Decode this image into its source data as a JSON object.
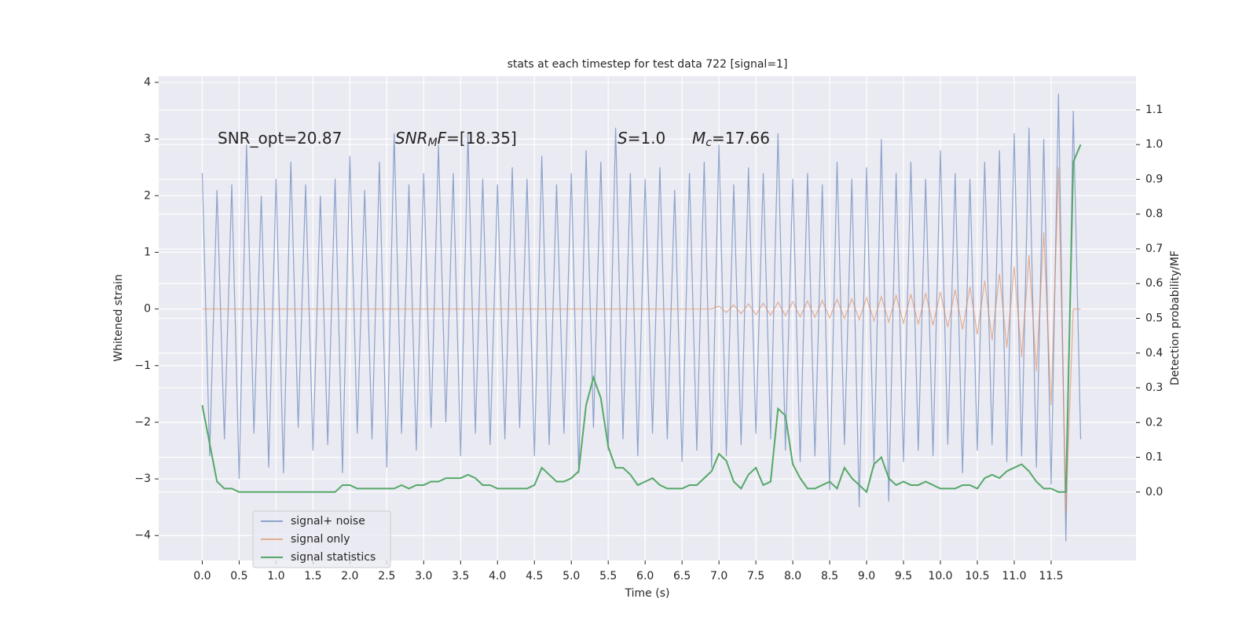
{
  "chart_data": {
    "type": "line",
    "title": "stats at each timestep for test data 722 [signal=1]",
    "xlabel": "Time (s)",
    "ylabel": "Whitened strain",
    "y2label": "Detection probability/MF",
    "annotations": [
      [
        {
          "text": "SNR_opt=20.87"
        }
      ],
      [
        {
          "text": "SNR",
          "style": "italic"
        },
        {
          "text": "M",
          "style": "sub"
        },
        {
          "text": "F",
          "style": "italic"
        },
        {
          "text": "=[18.35]"
        }
      ],
      [
        {
          "text": "S",
          "style": "italic"
        },
        {
          "text": "=1.0"
        }
      ],
      [
        {
          "text": "M",
          "style": "italic"
        },
        {
          "text": "c",
          "style": "sub"
        },
        {
          "text": "=17.66"
        }
      ]
    ],
    "x": [
      0,
      0.1,
      0.2,
      0.3,
      0.4,
      0.5,
      0.6,
      0.7,
      0.8,
      0.9,
      1,
      1.1,
      1.2,
      1.3,
      1.4,
      1.5,
      1.6,
      1.7,
      1.8,
      1.9,
      2,
      2.1,
      2.2,
      2.3,
      2.4,
      2.5,
      2.6,
      2.7,
      2.8,
      2.9,
      3,
      3.1,
      3.2,
      3.3,
      3.4,
      3.5,
      3.6,
      3.7,
      3.8,
      3.9,
      4,
      4.1,
      4.2,
      4.3,
      4.4,
      4.5,
      4.6,
      4.7,
      4.8,
      4.9,
      5,
      5.1,
      5.2,
      5.3,
      5.4,
      5.5,
      5.6,
      5.7,
      5.8,
      5.9,
      6,
      6.1,
      6.2,
      6.3,
      6.4,
      6.5,
      6.6,
      6.7,
      6.8,
      6.9,
      7,
      7.1,
      7.2,
      7.3,
      7.4,
      7.5,
      7.6,
      7.7,
      7.8,
      7.9,
      8,
      8.1,
      8.2,
      8.3,
      8.4,
      8.5,
      8.6,
      8.7,
      8.8,
      8.9,
      9,
      9.1,
      9.2,
      9.3,
      9.4,
      9.5,
      9.6,
      9.7,
      9.8,
      9.9,
      10,
      10.1,
      10.2,
      10.3,
      10.4,
      10.5,
      10.6,
      10.7,
      10.8,
      10.9,
      11,
      11.1,
      11.2,
      11.3,
      11.4,
      11.5,
      11.6,
      11.7,
      11.8,
      11.9
    ],
    "series": [
      {
        "name": "signal+ noise",
        "color": "#4c72b0",
        "axis": "y",
        "values": [
          2.4,
          -2.6,
          2.1,
          -2.3,
          2.2,
          -3.0,
          2.9,
          -2.2,
          2.0,
          -2.8,
          2.3,
          -2.9,
          2.6,
          -2.1,
          2.2,
          -2.5,
          2.0,
          -2.4,
          2.3,
          -2.9,
          2.7,
          -2.2,
          2.1,
          -2.3,
          2.6,
          -2.8,
          3.1,
          -2.2,
          2.2,
          -2.5,
          2.4,
          -2.1,
          2.9,
          -2.0,
          2.4,
          -2.6,
          3.1,
          -2.2,
          2.3,
          -2.4,
          2.2,
          -2.3,
          2.5,
          -2.1,
          2.3,
          -2.6,
          2.7,
          -2.4,
          2.2,
          -2.2,
          2.4,
          -2.9,
          2.8,
          -2.1,
          2.6,
          -2.5,
          3.2,
          -2.3,
          2.4,
          -2.6,
          2.3,
          -2.2,
          2.5,
          -2.3,
          2.1,
          -2.7,
          2.4,
          -2.5,
          2.6,
          -2.8,
          2.9,
          -2.6,
          2.2,
          -2.4,
          2.5,
          -2.2,
          2.4,
          -2.3,
          3.1,
          -2.5,
          2.3,
          -2.7,
          2.4,
          -2.6,
          2.2,
          -3.2,
          2.6,
          -2.4,
          2.3,
          -3.5,
          2.5,
          -2.8,
          3.0,
          -3.4,
          2.4,
          -2.7,
          2.6,
          -2.5,
          2.3,
          -2.6,
          2.8,
          -2.4,
          2.4,
          -2.9,
          2.3,
          -2.5,
          2.6,
          -2.4,
          2.8,
          -2.7,
          3.1,
          -2.6,
          3.2,
          -2.8,
          3.0,
          -3.1,
          3.8,
          -4.1,
          3.5,
          -2.3
        ]
      },
      {
        "name": "signal only",
        "color": "#dd8452",
        "axis": "y",
        "values": [
          0,
          0,
          0,
          0,
          0,
          0,
          0,
          0,
          0,
          0,
          0,
          0,
          0,
          0,
          0,
          0,
          0,
          0,
          0,
          0,
          0,
          0,
          0,
          0,
          0,
          0,
          0,
          0,
          0,
          0,
          0,
          0,
          0,
          0,
          0,
          0,
          0,
          0,
          0,
          0,
          0,
          0,
          0,
          0,
          0,
          0,
          0,
          0,
          0,
          0,
          0,
          0,
          0,
          0,
          0,
          0,
          0,
          0,
          0,
          0,
          0,
          0,
          0,
          0,
          0,
          0,
          0,
          0,
          0,
          0,
          0.05,
          -0.06,
          0.07,
          -0.08,
          0.09,
          -0.1,
          0.1,
          -0.11,
          0.12,
          -0.12,
          0.13,
          -0.14,
          0.14,
          -0.15,
          0.15,
          -0.16,
          0.17,
          -0.17,
          0.18,
          -0.19,
          0.2,
          -0.21,
          0.22,
          -0.23,
          0.24,
          -0.25,
          0.26,
          -0.27,
          0.28,
          -0.29,
          0.3,
          -0.32,
          0.34,
          -0.36,
          0.39,
          -0.45,
          0.5,
          -0.55,
          0.62,
          -0.68,
          0.75,
          -0.85,
          0.95,
          -1.1,
          1.35,
          -1.7,
          2.5,
          -3.6,
          0,
          0
        ]
      },
      {
        "name": "signal statistics",
        "color": "#55a868",
        "axis": "y2",
        "values": [
          0.25,
          0.14,
          0.03,
          0.01,
          0.01,
          0.0,
          0.0,
          0.0,
          0.0,
          0.0,
          0.0,
          0.0,
          0.0,
          0.0,
          0.0,
          0.0,
          0.0,
          0.0,
          0.0,
          0.02,
          0.02,
          0.01,
          0.01,
          0.01,
          0.01,
          0.01,
          0.01,
          0.02,
          0.01,
          0.02,
          0.02,
          0.03,
          0.03,
          0.04,
          0.04,
          0.04,
          0.05,
          0.04,
          0.02,
          0.02,
          0.01,
          0.01,
          0.01,
          0.01,
          0.01,
          0.02,
          0.07,
          0.05,
          0.03,
          0.03,
          0.04,
          0.06,
          0.25,
          0.33,
          0.27,
          0.13,
          0.07,
          0.07,
          0.05,
          0.02,
          0.03,
          0.04,
          0.02,
          0.01,
          0.01,
          0.01,
          0.02,
          0.02,
          0.04,
          0.06,
          0.11,
          0.09,
          0.03,
          0.01,
          0.05,
          0.07,
          0.02,
          0.03,
          0.24,
          0.22,
          0.08,
          0.04,
          0.01,
          0.01,
          0.02,
          0.03,
          0.01,
          0.07,
          0.04,
          0.02,
          0.0,
          0.08,
          0.1,
          0.04,
          0.02,
          0.03,
          0.02,
          0.02,
          0.03,
          0.02,
          0.01,
          0.01,
          0.01,
          0.02,
          0.02,
          0.01,
          0.04,
          0.05,
          0.04,
          0.06,
          0.07,
          0.08,
          0.06,
          0.03,
          0.01,
          0.01,
          0.0,
          0.0,
          0.95,
          1.0
        ]
      }
    ],
    "xlim": [
      -0.59,
      12.65
    ],
    "xticks": [
      {
        "value": 0,
        "label": "0.0"
      },
      0.5,
      {
        "value": 1,
        "label": "1.0"
      },
      1.5,
      {
        "value": 2,
        "label": "2.0"
      },
      2.5,
      {
        "value": 3,
        "label": "3.0"
      },
      3.5,
      {
        "value": 4,
        "label": "4.0"
      },
      4.5,
      {
        "value": 5,
        "label": "5.0"
      },
      5.5,
      {
        "value": 6,
        "label": "6.0"
      },
      6.5,
      {
        "value": 7,
        "label": "7.0"
      },
      7.5,
      {
        "value": 8,
        "label": "8.0"
      },
      8.5,
      {
        "value": 9,
        "label": "9.0"
      },
      9.5,
      {
        "value": 10,
        "label": "10.0"
      },
      10.5,
      {
        "value": 11,
        "label": "11.0"
      },
      11.5
    ],
    "ylim": [
      -4.44,
      4.11
    ],
    "yticks": [
      {
        "value": -4,
        "label": "−4"
      },
      {
        "value": -3,
        "label": "−3"
      },
      {
        "value": -2,
        "label": "−2"
      },
      {
        "value": -1,
        "label": "−1"
      },
      0,
      1,
      2,
      3,
      4
    ],
    "y2lim": [
      -0.197,
      1.197
    ],
    "y2ticks": [
      {
        "value": 0,
        "label": "0.0"
      },
      0.1,
      0.2,
      0.3,
      0.4,
      0.5,
      0.6,
      0.7,
      0.8,
      0.9,
      {
        "value": 1,
        "label": "1.0"
      },
      1.1
    ],
    "grid": true,
    "legend": "lower left"
  }
}
